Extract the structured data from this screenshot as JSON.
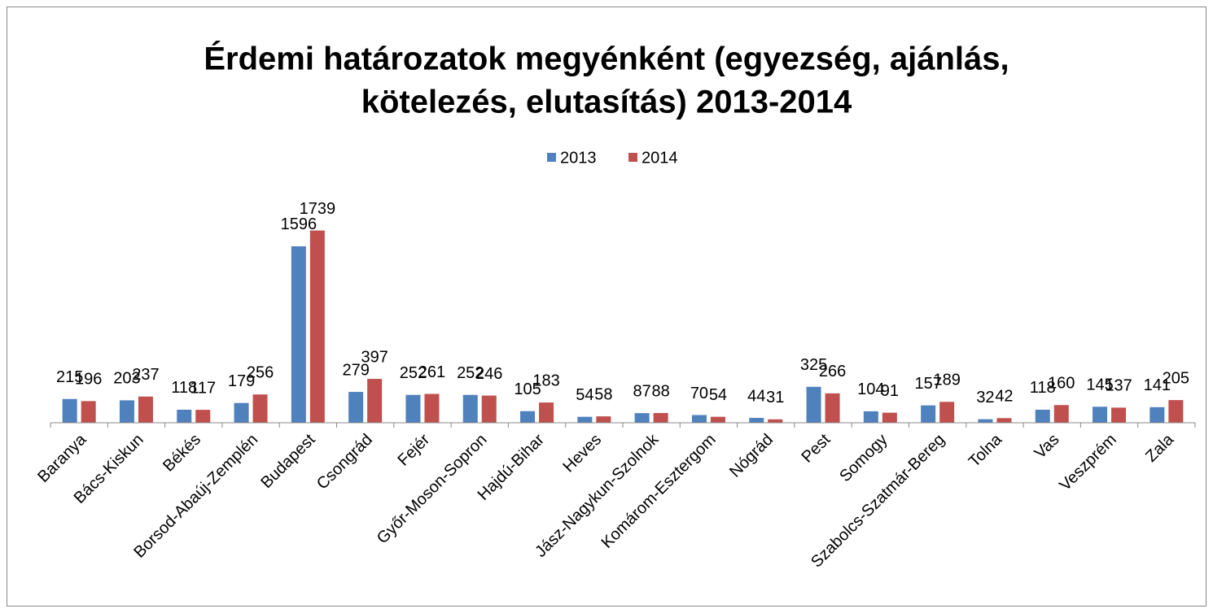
{
  "chart_data": {
    "type": "bar",
    "title": [
      "Érdemi határozatok megyénként (egyezség, ajánlás,",
      "kötelezés, elutasítás) 2013-2014"
    ],
    "categories": [
      "Baranya",
      "Bács-Kiskun",
      "Békés",
      "Borsod-Abaúj-Zemplén",
      "Budapest",
      "Csongrád",
      "Fejér",
      "Győr-Moson-Sopron",
      "Hajdú-Bihar",
      "Heves",
      "Jász-Nagykun-Szolnok",
      "Komárom-Esztergom",
      "Nógrád",
      "Pest",
      "Somogy",
      "Szabolcs-Szatmár-Bereg",
      "Tolna",
      "Vas",
      "Veszprém",
      "Zala"
    ],
    "series": [
      {
        "name": "2013",
        "color": "#4f81bd",
        "values": [
          215,
          203,
          118,
          179,
          1596,
          279,
          252,
          252,
          105,
          54,
          87,
          70,
          44,
          325,
          104,
          157,
          32,
          118,
          145,
          141
        ]
      },
      {
        "name": "2014",
        "color": "#c0504d",
        "values": [
          196,
          237,
          117,
          256,
          1739,
          397,
          261,
          246,
          183,
          58,
          88,
          54,
          31,
          266,
          91,
          189,
          42,
          160,
          137,
          205
        ]
      }
    ],
    "ylim": [
      0,
      2000
    ],
    "legend": "top"
  }
}
